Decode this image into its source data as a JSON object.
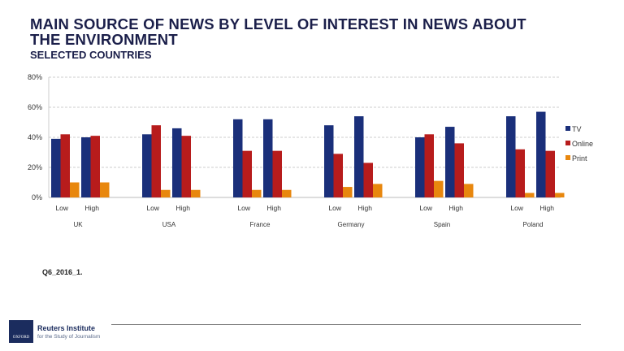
{
  "title_line1": "MAIN SOURCE OF NEWS BY LEVEL OF INTEREST IN NEWS ABOUT",
  "title_line2": "THE ENVIRONMENT",
  "subtitle": "SELECTED COUNTRIES",
  "note": "Q6_2016_1.",
  "footer": {
    "org": "Reuters Institute",
    "org_sub": "for the Study of Journalism",
    "logo_text": "OXFORD"
  },
  "chart_data": {
    "type": "bar",
    "countries": [
      "UK",
      "USA",
      "France",
      "Germany",
      "Spain",
      "Poland"
    ],
    "subcategories": [
      "Low",
      "High"
    ],
    "yticks": [
      "0%",
      "20%",
      "40%",
      "60%",
      "80%"
    ],
    "ylim": [
      0,
      80
    ],
    "grid": true,
    "legend_position": "right",
    "series": [
      {
        "name": "TV",
        "color": "#1a2f7a",
        "values": [
          [
            39,
            40
          ],
          [
            42,
            46
          ],
          [
            52,
            52
          ],
          [
            48,
            54
          ],
          [
            40,
            47
          ],
          [
            54,
            57
          ]
        ]
      },
      {
        "name": "Online",
        "color": "#b71c1c",
        "values": [
          [
            42,
            41
          ],
          [
            48,
            41
          ],
          [
            31,
            31
          ],
          [
            29,
            23
          ],
          [
            42,
            36
          ],
          [
            32,
            31
          ]
        ]
      },
      {
        "name": "Print",
        "color": "#e8870e",
        "values": [
          [
            10,
            10
          ],
          [
            5,
            5
          ],
          [
            5,
            5
          ],
          [
            7,
            9
          ],
          [
            11,
            9
          ],
          [
            3,
            3
          ]
        ]
      }
    ]
  }
}
